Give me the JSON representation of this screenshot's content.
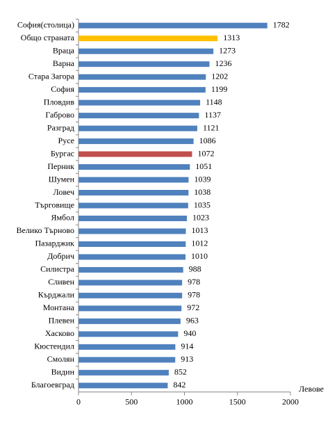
{
  "chart_data": {
    "type": "barh",
    "categories": [
      "София(столица)",
      "Общо страната",
      "Враца",
      "Варна",
      "Стара Загора",
      "София",
      "Пловдив",
      "Габрово",
      "Разград",
      "Русе",
      "Бургас",
      "Перник",
      "Шумен",
      "Ловеч",
      "Търговище",
      "Ямбол",
      "Велико Търново",
      "Пазарджик",
      "Добрич",
      "Силистра",
      "Сливен",
      "Кърджали",
      "Монтана",
      "Плевен",
      "Хасково",
      "Кюстендил",
      "Смолян",
      "Видин",
      "Благоевград"
    ],
    "values": [
      1782,
      1313,
      1273,
      1236,
      1202,
      1199,
      1148,
      1137,
      1121,
      1086,
      1072,
      1051,
      1039,
      1038,
      1035,
      1023,
      1013,
      1012,
      1010,
      988,
      978,
      978,
      972,
      963,
      940,
      914,
      913,
      852,
      842
    ],
    "colors": [
      "#4f81bd",
      "#ffc000",
      "#4f81bd",
      "#4f81bd",
      "#4f81bd",
      "#4f81bd",
      "#4f81bd",
      "#4f81bd",
      "#4f81bd",
      "#4f81bd",
      "#c0504d",
      "#4f81bd",
      "#4f81bd",
      "#4f81bd",
      "#4f81bd",
      "#4f81bd",
      "#4f81bd",
      "#4f81bd",
      "#4f81bd",
      "#4f81bd",
      "#4f81bd",
      "#4f81bd",
      "#4f81bd",
      "#4f81bd",
      "#4f81bd",
      "#4f81bd",
      "#4f81bd",
      "#4f81bd",
      "#4f81bd"
    ],
    "x_label": "Левове",
    "xlim": [
      0,
      2000
    ],
    "xticks": [
      0,
      500,
      1000,
      1500,
      2000
    ],
    "grid": false
  }
}
